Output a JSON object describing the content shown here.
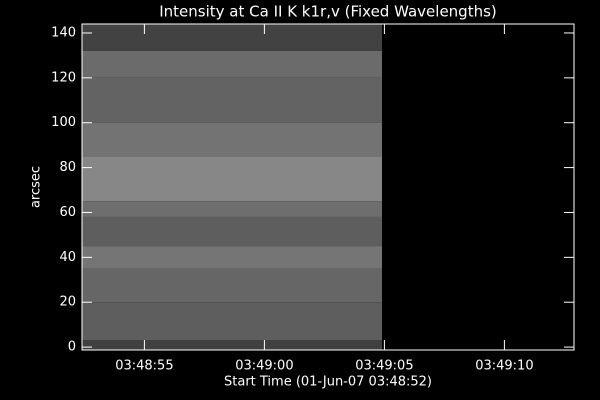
{
  "chart_data": {
    "type": "heatmap",
    "title": "Intensity at Ca II K k1r,v (Fixed Wavelengths)",
    "x_label": "Start Time (01-Jun-07 03:48:52)",
    "y_label": "arcsec",
    "xlim": [
      0.4,
      20.9
    ],
    "ylim": [
      -1.3,
      144
    ],
    "xticks": [
      {
        "value": 3,
        "label": "03:48:55"
      },
      {
        "value": 8,
        "label": "03:49:00"
      },
      {
        "value": 13,
        "label": "03:49:05"
      },
      {
        "value": 18,
        "label": "03:49:10"
      }
    ],
    "yticks": [
      0,
      20,
      40,
      60,
      80,
      100,
      120,
      140
    ],
    "image_x": [
      0.4,
      12.9
    ],
    "rows": [
      {
        "y": [
          132,
          144
        ],
        "level": 0.26
      },
      {
        "y": [
          120,
          132
        ],
        "level": 0.42
      },
      {
        "y": [
          100,
          120
        ],
        "level": 0.39
      },
      {
        "y": [
          85,
          100
        ],
        "level": 0.45
      },
      {
        "y": [
          65,
          85
        ],
        "level": 0.53
      },
      {
        "y": [
          58,
          65
        ],
        "level": 0.43
      },
      {
        "y": [
          45,
          58
        ],
        "level": 0.37
      },
      {
        "y": [
          35,
          45
        ],
        "level": 0.46
      },
      {
        "y": [
          20,
          35
        ],
        "level": 0.4
      },
      {
        "y": [
          3,
          20
        ],
        "level": 0.37
      },
      {
        "y": [
          -1.3,
          3
        ],
        "level": 0.25
      }
    ]
  }
}
